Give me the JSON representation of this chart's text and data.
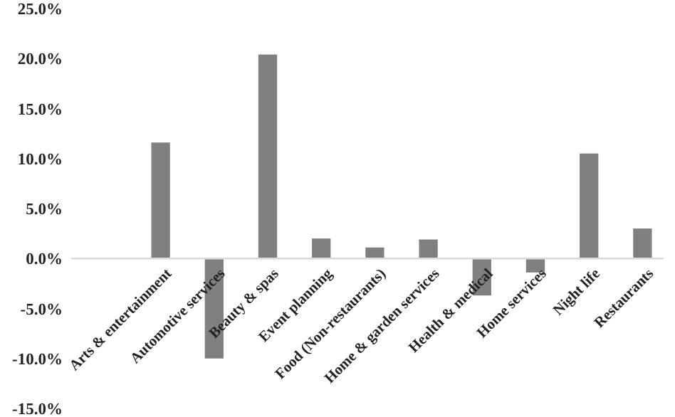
{
  "chart_data": {
    "type": "bar",
    "categories": [
      "Arts & entertainment",
      "Automotive services",
      "Beauty & spas",
      "Event planning",
      "Food (Non-restaurants)",
      "Home & garden services",
      "Health & medical",
      "Home services",
      "Night life",
      "Restaurants"
    ],
    "values": [
      11.6,
      -10.0,
      20.4,
      2.0,
      1.1,
      1.9,
      -3.7,
      -1.4,
      10.5,
      3.0
    ],
    "color": "#808080",
    "ylim": [
      -15,
      25
    ],
    "yticks": [
      {
        "value": -15,
        "label": "-15.0%"
      },
      {
        "value": -10,
        "label": "-10.0%"
      },
      {
        "value": -5,
        "label": "-5.0%"
      },
      {
        "value": 0,
        "label": "0.0%"
      },
      {
        "value": 5,
        "label": "5.0%"
      },
      {
        "value": 10,
        "label": "10.0%"
      },
      {
        "value": 15,
        "label": "15.0%"
      },
      {
        "value": 20,
        "label": "20.0%"
      },
      {
        "value": 25,
        "label": "25.0%"
      }
    ],
    "grid": false
  }
}
